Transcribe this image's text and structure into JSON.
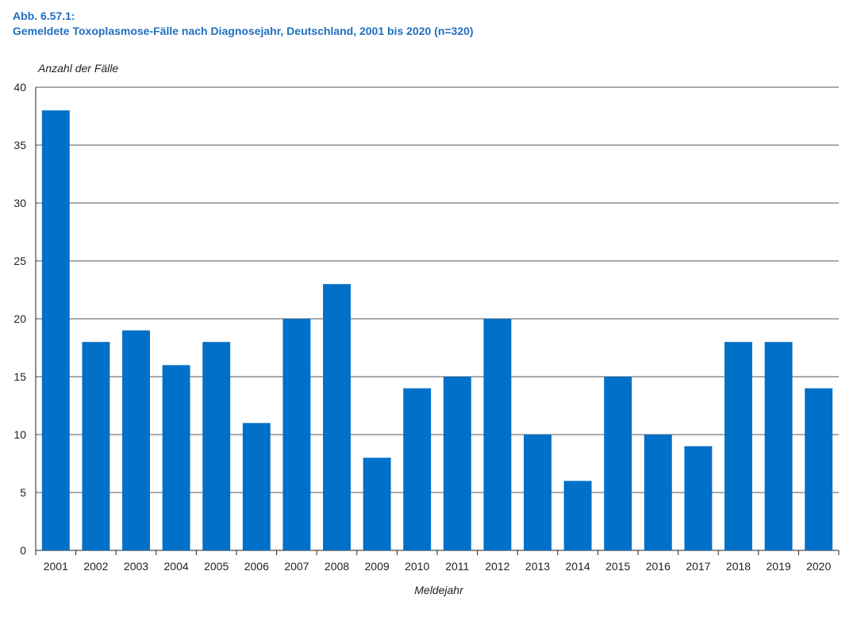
{
  "header": {
    "figure_number": "Abb. 6.57.1:",
    "title": "Gemeldete Toxoplasmose-Fälle nach Diagnosejahr, Deutschland, 2001 bis 2020 (n=320)"
  },
  "chart_data": {
    "type": "bar",
    "title": "Gemeldete Toxoplasmose-Fälle nach Diagnosejahr, Deutschland, 2001 bis 2020 (n=320)",
    "xlabel": "Meldejahr",
    "ylabel": "Anzahl der Fälle",
    "ylim": [
      0,
      40
    ],
    "yticks": [
      0,
      5,
      10,
      15,
      20,
      25,
      30,
      35,
      40
    ],
    "grid": true,
    "bar_color": "#0070c8",
    "categories": [
      "2001",
      "2002",
      "2003",
      "2004",
      "2005",
      "2006",
      "2007",
      "2008",
      "2009",
      "2010",
      "2011",
      "2012",
      "2013",
      "2014",
      "2015",
      "2016",
      "2017",
      "2018",
      "2019",
      "2020"
    ],
    "values": [
      38,
      18,
      19,
      16,
      18,
      11,
      20,
      23,
      8,
      14,
      15,
      20,
      10,
      6,
      15,
      10,
      9,
      18,
      18,
      14
    ]
  }
}
